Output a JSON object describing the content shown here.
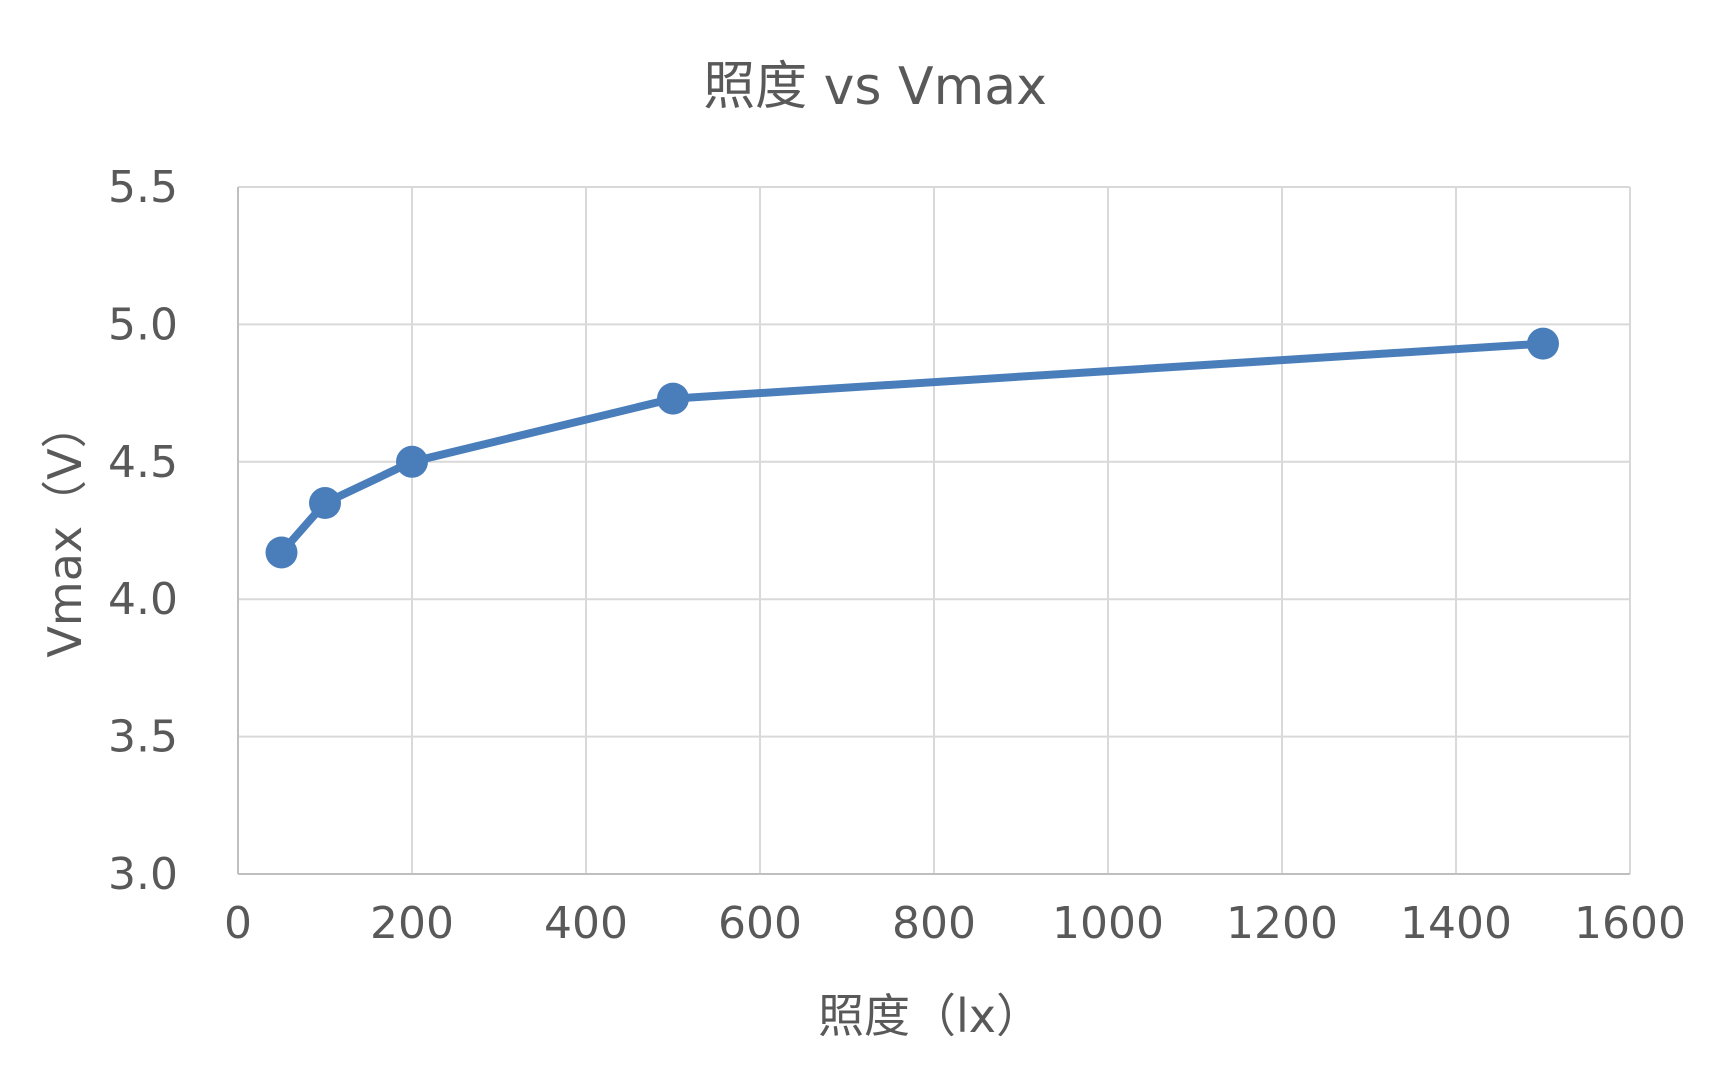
{
  "chart_data": {
    "type": "scatter",
    "title": "照度 vs Vmax",
    "xlabel": "照度（lx）",
    "ylabel": "Vmax（V）",
    "xlim": [
      0,
      1600
    ],
    "ylim": [
      3.0,
      5.5
    ],
    "x_ticks": [
      "0",
      "200",
      "400",
      "600",
      "800",
      "1000",
      "1200",
      "1400",
      "1600"
    ],
    "y_ticks": [
      "3.0",
      "3.5",
      "4.0",
      "4.5",
      "5.0",
      "5.5"
    ],
    "grid": true,
    "legend": false,
    "series": [
      {
        "x": [
          50,
          100,
          200,
          500,
          1500
        ],
        "y": [
          4.17,
          4.35,
          4.5,
          4.73,
          4.93
        ],
        "color": "#4a7ebb",
        "line": true,
        "markers": true
      }
    ]
  }
}
